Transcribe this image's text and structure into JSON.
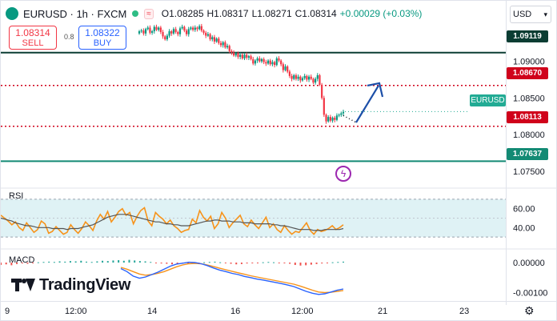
{
  "header": {
    "symbol": "EURUSD · 1h · FXCM",
    "open": "O1.08285",
    "high": "H1.08317",
    "low": "L1.08271",
    "close": "C1.08314",
    "change": "+0.00029 (+0.03%)",
    "indicator_badge": "≈"
  },
  "trade": {
    "sell_price": "1.08314",
    "sell_label": "SELL",
    "buy_price": "1.08322",
    "buy_label": "BUY",
    "spread": "0.8"
  },
  "currency_selector": "USD",
  "symbol_tag": "EURUSD",
  "logo_text": "TradingView",
  "price_levels": {
    "level_1": "1.09119",
    "level_2": "1.08670",
    "level_3": "1.08113",
    "level_4": "1.07637"
  },
  "colors": {
    "up": "#089981",
    "down": "#f23645",
    "level_dark": "#0b3d33",
    "level_red": "#d0021b",
    "level_teal": "#138a74",
    "arrow": "#1c4fa8",
    "rsi_line": "#f7931a",
    "rsi_ma": "#555555",
    "macd_line": "#2962ff",
    "macd_signal": "#f7931a"
  },
  "chart_data": [
    {
      "type": "candlestick",
      "title": "EURUSD · 1h · FXCM",
      "x_tick_labels": [
        "9",
        "12:00",
        "14",
        "16",
        "12:00",
        "21",
        "23"
      ],
      "y_tick_labels": [
        "1.09000",
        "1.08500",
        "1.08000",
        "1.07500"
      ],
      "ylim": [
        1.0728,
        1.0952
      ],
      "close_series": [
        1.0941,
        1.0942,
        1.0938,
        1.0944,
        1.0946,
        1.0939,
        1.0941,
        1.0947,
        1.0943,
        1.0946,
        1.094,
        1.0934,
        1.093,
        1.0935,
        1.0941,
        1.0938,
        1.0944,
        1.094,
        1.0937,
        1.0945,
        1.0947,
        1.0942,
        1.0937,
        1.0944,
        1.0946,
        1.0943,
        1.0946,
        1.0944,
        1.0948,
        1.0942,
        1.0939,
        1.0935,
        1.0937,
        1.093,
        1.0933,
        1.0927,
        1.0931,
        1.0925,
        1.0922,
        1.0926,
        1.0919,
        1.0921,
        1.0914,
        1.0912,
        1.0908,
        1.0911,
        1.0906,
        1.0909,
        1.0904,
        1.0909,
        1.0905,
        1.0907,
        1.0903,
        1.0897,
        1.0901,
        1.0904,
        1.09,
        1.0903,
        1.0899,
        1.0897,
        1.0901,
        1.0896,
        1.0899,
        1.0895,
        1.0904,
        1.0901,
        1.0896,
        1.0888,
        1.0893,
        1.0886,
        1.088,
        1.0876,
        1.0881,
        1.0876,
        1.0879,
        1.0874,
        1.0877,
        1.088,
        1.0875,
        1.0879,
        1.0876,
        1.0871,
        1.0876,
        1.0881,
        1.0868,
        1.085,
        1.0827,
        1.0818,
        1.0824,
        1.0819,
        1.0823,
        1.082,
        1.0826,
        1.0827,
        1.0829,
        1.0831
      ],
      "horizontal_levels": [
        1.09119,
        1.0867,
        1.08113,
        1.07637
      ],
      "last_price": 1.08314,
      "projection_arrow": [
        [
          1.08165
        ],
        [
          1.0869
        ]
      ]
    },
    {
      "type": "line",
      "title": "RSI",
      "y_tick_labels": [
        "60.00",
        "40.00"
      ],
      "ylim": [
        20,
        80
      ],
      "band": [
        30,
        70
      ],
      "series": [
        {
          "values": [
            53,
            50,
            47,
            43,
            46,
            40,
            37,
            45,
            40,
            35,
            38,
            47,
            44,
            34,
            36,
            41,
            37,
            33,
            35,
            43,
            38,
            34,
            39,
            46,
            42,
            37,
            47,
            54,
            49,
            57,
            46,
            51,
            57,
            60,
            53,
            56,
            44,
            52,
            58,
            61,
            47,
            42,
            56,
            52,
            49,
            44,
            48,
            42,
            39,
            35,
            37,
            38,
            49,
            45,
            58,
            51,
            47,
            52,
            39,
            44,
            56,
            50,
            40,
            45,
            49,
            53,
            44,
            41,
            48,
            43,
            39,
            45,
            51,
            40,
            44,
            38,
            35,
            42,
            37,
            33,
            36,
            35,
            40,
            45,
            37,
            33,
            38,
            36,
            37,
            39,
            42,
            38,
            40,
            43
          ]
        },
        {
          "values": [
            50,
            49,
            48,
            47,
            45,
            44,
            43,
            42,
            42,
            41,
            40,
            40,
            40,
            40,
            39,
            39,
            39,
            39,
            38,
            39,
            39,
            39,
            40,
            41,
            42,
            43,
            45,
            47,
            49,
            51,
            52,
            53,
            54,
            54,
            54,
            53,
            52,
            51,
            50,
            49,
            48,
            47,
            46,
            46,
            45,
            44,
            44,
            43,
            43,
            42,
            42,
            42,
            43,
            44,
            45,
            46,
            47,
            47,
            48,
            48,
            47,
            47,
            47,
            46,
            46,
            46,
            45,
            45,
            45,
            44,
            44,
            44,
            44,
            44,
            43,
            43,
            42,
            42,
            41,
            40,
            39,
            38,
            38,
            38,
            38,
            37,
            37,
            37,
            38,
            38,
            38,
            38,
            38,
            39
          ]
        }
      ]
    },
    {
      "type": "bar+line",
      "title": "MACD",
      "y_tick_labels": [
        "0.00000",
        "-0.00100"
      ],
      "ylim": [
        -0.0012,
        0.0004
      ],
      "histogram": [
        -8e-05,
        -6e-05,
        -9e-05,
        -5e-05,
        -3e-05,
        -4e-05,
        -2e-05,
        1e-05,
        2e-05,
        3e-05,
        2e-05,
        4e-05,
        3e-05,
        5e-05,
        4e-05,
        6e-05,
        3e-05,
        2e-05,
        4e-05,
        6e-05,
        5e-05,
        7e-05,
        8e-05,
        6e-05,
        9e-05,
        7e-05,
        5e-05,
        4e-05,
        2e-05,
        -1e-05,
        -3e-05,
        -4e-05,
        -6e-05,
        -5e-05,
        -3e-05,
        -4e-05,
        -2e-05,
        -1e-05,
        1e-05,
        2e-05,
        3e-05,
        1e-05,
        -2e-05,
        -4e-05,
        -6e-05,
        -5e-05,
        -3e-05,
        -2e-05,
        -1e-05,
        1e-05,
        2e-05,
        1e-05,
        -1e-05,
        -2e-05,
        -4e-05,
        -8e-05,
        -0.0001,
        -9e-05,
        -7e-05,
        -5e-05,
        -3e-05,
        -1e-05,
        1e-05,
        2e-05,
        3e-05
      ],
      "series": [
        {
          "values": [
            -0.0002,
            -0.0003,
            -0.00045,
            -0.00052,
            -0.00048,
            -0.0004,
            -0.00032,
            -0.00022,
            -0.00012,
            -5e-05,
            -2e-05,
            1e-05,
            0.0,
            -4e-05,
            -0.0001,
            -0.00018,
            -0.00025,
            -0.0003,
            -0.00036,
            -0.0004,
            -0.00046,
            -0.0005,
            -0.00055,
            -0.00058,
            -0.00062,
            -0.00066,
            -0.0007,
            -0.00075,
            -0.0008,
            -0.00088,
            -0.00096,
            -0.00102,
            -0.00106,
            -0.00104,
            -0.00098,
            -0.00092,
            -0.00088
          ]
        },
        {
          "values": [
            -0.00016,
            -0.00022,
            -0.0003,
            -0.00038,
            -0.00042,
            -0.0004,
            -0.00036,
            -0.0003,
            -0.00022,
            -0.00014,
            -8e-05,
            -4e-05,
            -3e-05,
            -4e-05,
            -8e-05,
            -0.00013,
            -0.00019,
            -0.00024,
            -0.00029,
            -0.00034,
            -0.00039,
            -0.00044,
            -0.00048,
            -0.00052,
            -0.00056,
            -0.0006,
            -0.00064,
            -0.00068,
            -0.00072,
            -0.00078,
            -0.00085,
            -0.00092,
            -0.00098,
            -0.001,
            -0.00099,
            -0.00096,
            -0.00093
          ]
        }
      ]
    }
  ]
}
